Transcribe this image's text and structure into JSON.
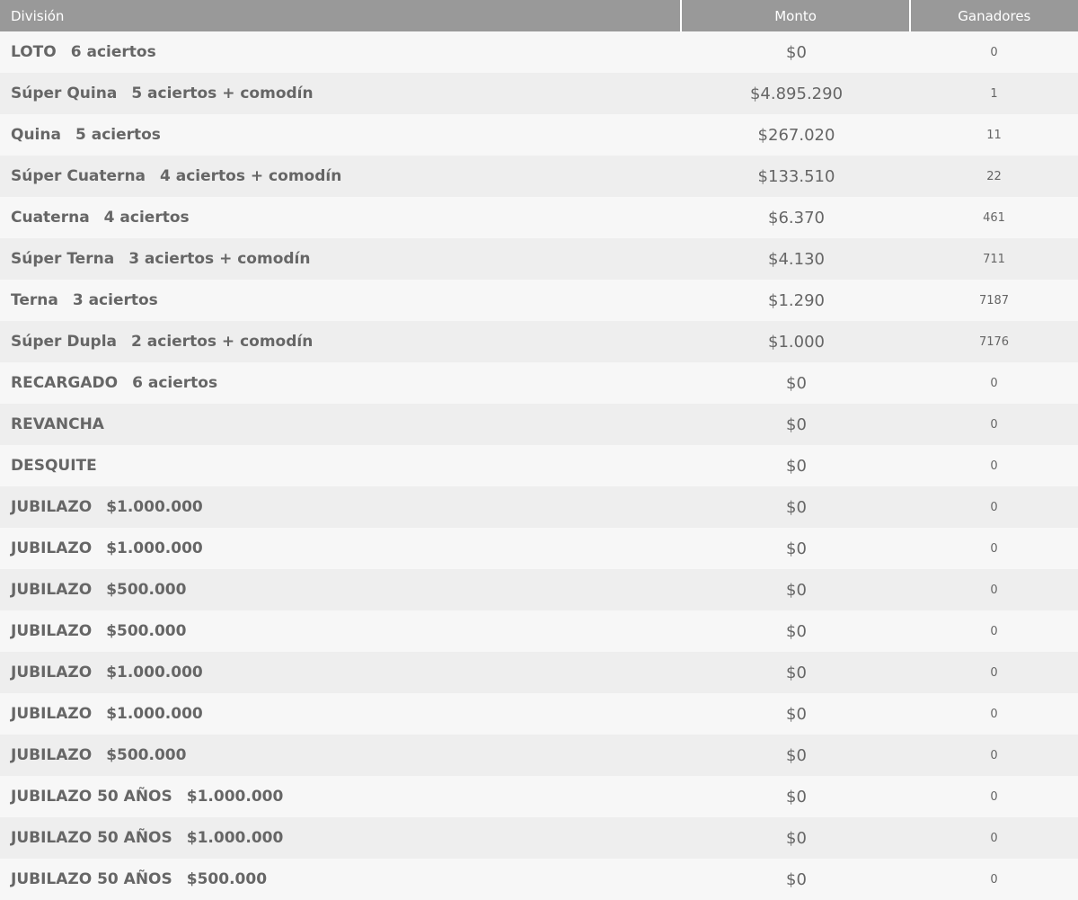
{
  "table": {
    "headers": [
      "División",
      "Monto",
      "Ganadores"
    ],
    "rows": [
      {
        "division": "LOTO",
        "detail": "6 aciertos",
        "monto": "$0",
        "ganadores": 0
      },
      {
        "division": "Súper Quina",
        "detail": "5 aciertos + comodín",
        "monto": "$4.895.290",
        "ganadores": 1
      },
      {
        "division": "Quina",
        "detail": "5 aciertos",
        "monto": "$267.020",
        "ganadores": 11
      },
      {
        "division": "Súper Cuaterna",
        "detail": "4 aciertos + comodín",
        "monto": "$133.510",
        "ganadores": 22
      },
      {
        "division": "Cuaterna",
        "detail": "4 aciertos",
        "monto": "$6.370",
        "ganadores": 461
      },
      {
        "division": "Súper Terna",
        "detail": "3 aciertos + comodín",
        "monto": "$4.130",
        "ganadores": 711
      },
      {
        "division": "Terna",
        "detail": "3 aciertos",
        "monto": "$1.290",
        "ganadores": 7187
      },
      {
        "division": "Súper Dupla",
        "detail": "2 aciertos + comodín",
        "monto": "$1.000",
        "ganadores": 7176
      },
      {
        "division": "RECARGADO",
        "detail": "6 aciertos",
        "monto": "$0",
        "ganadores": 0
      },
      {
        "division": "REVANCHA",
        "monto": "$0",
        "ganadores": 0
      },
      {
        "division": "DESQUITE",
        "monto": "$0",
        "ganadores": 0
      },
      {
        "division": "JUBILAZO",
        "detail": "$1.000.000",
        "monto": "$0",
        "ganadores": 0
      },
      {
        "division": "JUBILAZO",
        "detail": "$1.000.000",
        "monto": "$0",
        "ganadores": 0
      },
      {
        "division": "JUBILAZO",
        "detail": "$500.000",
        "monto": "$0",
        "ganadores": 0
      },
      {
        "division": "JUBILAZO",
        "detail": "$500.000",
        "monto": "$0",
        "ganadores": 0
      },
      {
        "division": "JUBILAZO",
        "detail": "$1.000.000",
        "monto": "$0",
        "ganadores": 0
      },
      {
        "division": "JUBILAZO",
        "detail": "$1.000.000",
        "monto": "$0",
        "ganadores": 0
      },
      {
        "division": "JUBILAZO",
        "detail": "$500.000",
        "monto": "$0",
        "ganadores": 0
      },
      {
        "division": "JUBILAZO 50 AÑOS",
        "detail": "$1.000.000",
        "monto": "$0",
        "ganadores": 0
      },
      {
        "division": "JUBILAZO 50 AÑOS",
        "detail": "$1.000.000",
        "monto": "$0",
        "ganadores": 0
      },
      {
        "division": "JUBILAZO 50 AÑOS",
        "detail": "$500.000",
        "monto": "$0",
        "ganadores": 0
      }
    ]
  }
}
